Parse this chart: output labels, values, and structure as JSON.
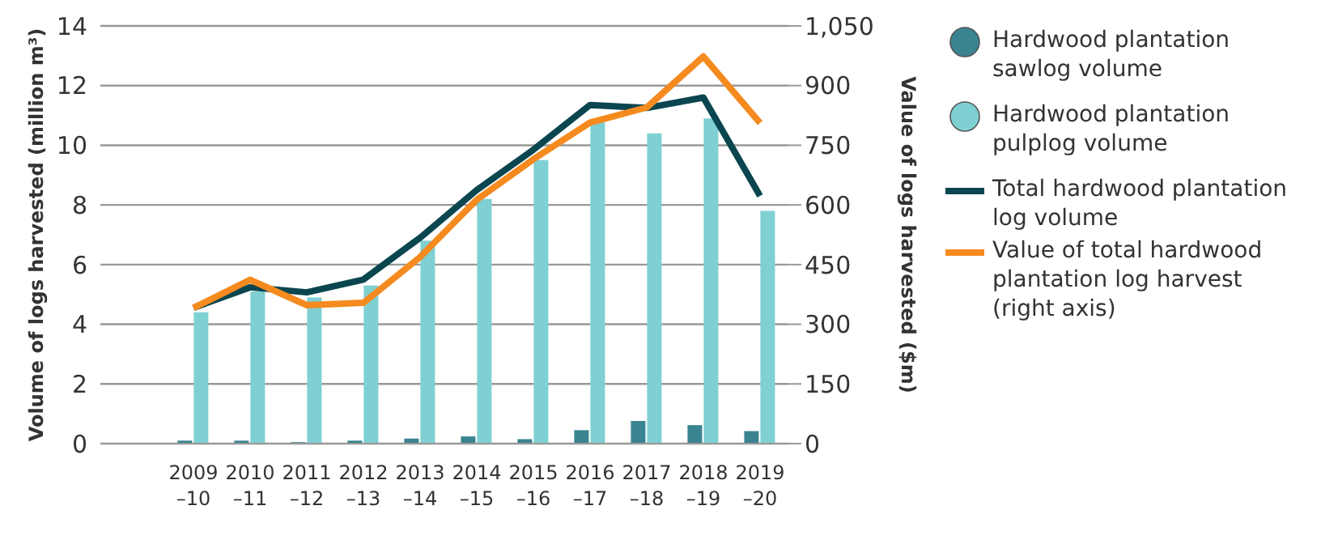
{
  "chart_data": {
    "type": "bar",
    "categories": [
      "2009–10",
      "2010–11",
      "2011–12",
      "2012–13",
      "2013–14",
      "2014–15",
      "2015–16",
      "2016–17",
      "2017–18",
      "2018–19",
      "2019–20"
    ],
    "ylabel": "Volume of logs harvested (million m³)",
    "y2label": "Value of logs harvested ($m)",
    "ylim": [
      0,
      14
    ],
    "yticks": [
      0,
      2,
      4,
      6,
      8,
      10,
      12,
      14
    ],
    "y2lim": [
      0,
      1050
    ],
    "y2ticks": [
      0,
      150,
      300,
      450,
      600,
      750,
      900,
      {
        "value": 1050,
        "label": "1,050"
      }
    ],
    "grid": "y",
    "legend": "right",
    "series": [
      {
        "name": "Hardwood plantation sawlog volume",
        "color": "#3a8391",
        "values": [
          0.1,
          0.1,
          0.05,
          0.1,
          0.17,
          0.24,
          0.15,
          0.45,
          0.76,
          0.62,
          0.42
        ]
      },
      {
        "name": "Hardwood plantation pulplog volume",
        "color": "#7fd0d2",
        "values": [
          4.4,
          5.1,
          4.9,
          5.3,
          6.8,
          8.2,
          9.5,
          10.8,
          10.4,
          10.9,
          7.8
        ]
      },
      {
        "name": "Total hardwood plantation log volume",
        "type": "line",
        "color": "#0b4650",
        "values": [
          4.55,
          5.24,
          5.07,
          5.5,
          6.9,
          8.5,
          9.85,
          11.35,
          11.25,
          11.6,
          8.3
        ]
      },
      {
        "name": "Value of total hardwood plantation log harvest (right axis)",
        "type": "line",
        "axis": "y2",
        "color": "#f58a1f",
        "values": [
          341,
          412,
          348,
          354,
          469,
          613,
          715,
          807,
          845,
          973,
          806
        ]
      }
    ]
  }
}
